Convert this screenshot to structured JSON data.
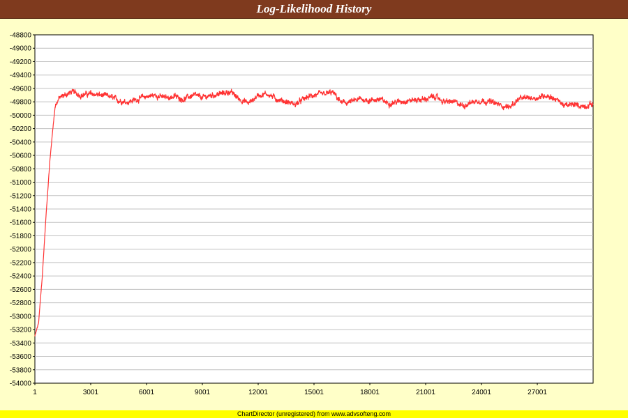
{
  "header": {
    "title": "Log-Likelihood History"
  },
  "footer": {
    "text": "ChartDirector (unregistered) from www.advsofteng.com"
  },
  "colors": {
    "title_bg": "#7f3a1e",
    "background": "#ffffc8",
    "plot_bg": "#ffffff",
    "grid": "#c0c0c0",
    "series": "#ff3333",
    "footer_bg": "#ffff00"
  },
  "chart_data": {
    "type": "line",
    "title": "Log-Likelihood History",
    "xlabel": "",
    "ylabel": "",
    "xlim": [
      1,
      30000
    ],
    "ylim": [
      -54000,
      -48800
    ],
    "x_ticks": [
      1,
      3001,
      6001,
      9001,
      12001,
      15001,
      18001,
      21001,
      24001,
      27001
    ],
    "y_ticks": [
      -48800,
      -49000,
      -49200,
      -49400,
      -49600,
      -49800,
      -50000,
      -50200,
      -50400,
      -50600,
      -50800,
      -51000,
      -51200,
      -51400,
      -51600,
      -51800,
      -52000,
      -52200,
      -52400,
      -52600,
      -52800,
      -53000,
      -53200,
      -53400,
      -53600,
      -53800,
      -54000
    ],
    "grid": "horizontal",
    "legend": "none",
    "series": [
      {
        "x": [
          1,
          200,
          400,
          600,
          800,
          1000,
          1100,
          1300,
          1600,
          2000,
          2500,
          3001,
          3500,
          4000,
          4500,
          5000,
          5500,
          6001,
          6500,
          7000,
          7500,
          8000,
          8500,
          9001,
          9500,
          10000,
          10500,
          11000,
          11500,
          12001,
          12500,
          13000,
          13500,
          14000,
          14500,
          15001,
          15500,
          16000,
          16500,
          17000,
          17500,
          18001,
          18500,
          19000,
          19500,
          20000,
          20500,
          21001,
          21500,
          22000,
          22500,
          23000,
          23500,
          24001,
          24500,
          25000,
          25500,
          26000,
          26500,
          27001,
          27500,
          28000,
          28500,
          29000,
          29500,
          30000
        ],
        "y": [
          -53300,
          -53100,
          -52400,
          -51500,
          -50700,
          -50100,
          -49850,
          -49750,
          -49700,
          -49650,
          -49700,
          -49680,
          -49700,
          -49720,
          -49780,
          -49800,
          -49760,
          -49720,
          -49700,
          -49740,
          -49720,
          -49760,
          -49700,
          -49740,
          -49700,
          -49680,
          -49650,
          -49760,
          -49820,
          -49700,
          -49680,
          -49760,
          -49800,
          -49840,
          -49750,
          -49700,
          -49690,
          -49660,
          -49820,
          -49800,
          -49760,
          -49780,
          -49760,
          -49820,
          -49800,
          -49780,
          -49770,
          -49760,
          -49720,
          -49800,
          -49800,
          -49860,
          -49800,
          -49780,
          -49800,
          -49850,
          -49880,
          -49760,
          -49740,
          -49740,
          -49700,
          -49760,
          -49860,
          -49840,
          -49870,
          -49830
        ]
      }
    ]
  }
}
